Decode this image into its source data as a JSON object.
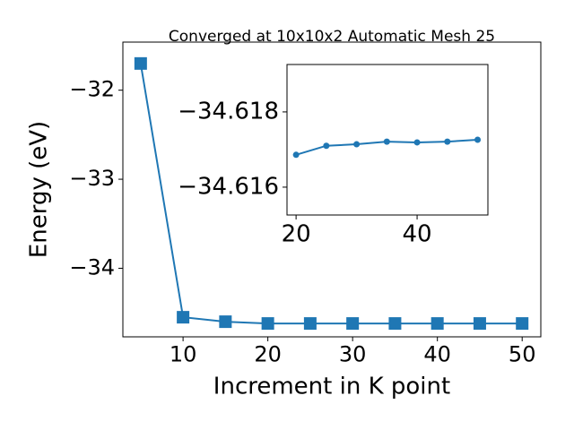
{
  "chart_data": [
    {
      "type": "line",
      "title": "Converged at 10x10x2 Automatic Mesh 25",
      "x_label": "Increment in K point",
      "y_label": "Energy (eV)",
      "x": [
        5,
        10,
        15,
        20,
        25,
        30,
        35,
        40,
        45,
        50
      ],
      "series": [
        {
          "color": "#1f77b4",
          "marker": "square",
          "values": [
            -31.7,
            -34.55,
            -34.6,
            -34.62,
            -34.62,
            -34.62,
            -34.62,
            -34.62,
            -34.62,
            -34.62
          ]
        }
      ],
      "xlim": [
        2.9,
        52.2
      ],
      "ylim": [
        -34.77,
        -31.46
      ],
      "xticks": [
        10,
        20,
        30,
        40,
        50
      ],
      "yticks": [
        {
          "value": -34,
          "label": "−34"
        },
        {
          "value": -33,
          "label": "−33"
        },
        {
          "value": -32,
          "label": "−32"
        }
      ]
    },
    {
      "type": "line",
      "x": [
        20,
        25,
        30,
        35,
        40,
        45,
        50
      ],
      "series": [
        {
          "color": "#1f77b4",
          "marker": "circle",
          "values": [
            -34.61686,
            -34.6171,
            -34.61714,
            -34.61721,
            -34.61719,
            -34.61721,
            -34.61726
          ]
        }
      ],
      "xlim": [
        18.5,
        51.7
      ],
      "ylim": [
        -34.61926,
        -34.61526
      ],
      "y_inverted": true,
      "xticks": [
        20,
        40
      ],
      "yticks": [
        {
          "value": -34.618,
          "label": "−34.618"
        },
        {
          "value": -34.616,
          "label": "−34.616"
        }
      ]
    }
  ]
}
